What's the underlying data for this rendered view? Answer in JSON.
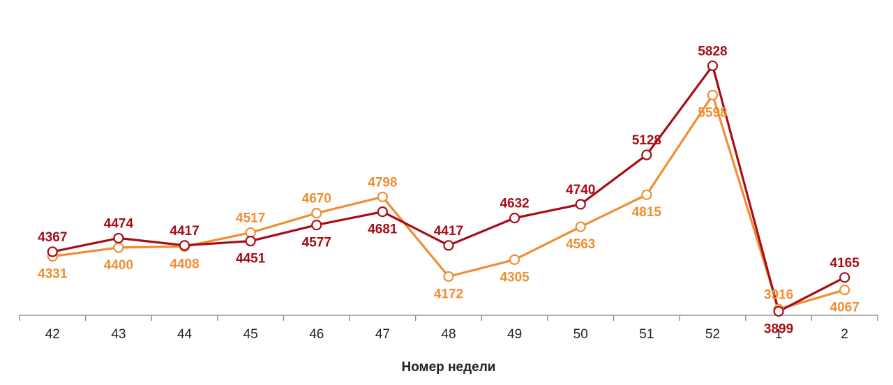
{
  "chart_data": {
    "type": "line",
    "title": "",
    "xlabel": "Номер недели",
    "ylabel": "",
    "categories": [
      "42",
      "43",
      "44",
      "45",
      "46",
      "47",
      "48",
      "49",
      "50",
      "51",
      "52",
      "1",
      "2"
    ],
    "series": [
      {
        "color": "#A80D15",
        "values": [
          4367,
          4474,
          4417,
          4451,
          4577,
          4681,
          4417,
          4632,
          4740,
          5128,
          5828,
          3899,
          4165
        ]
      },
      {
        "color": "#EF8E33",
        "values": [
          4331,
          4400,
          4408,
          4517,
          4670,
          4798,
          4172,
          4305,
          4563,
          4815,
          5598,
          3916,
          4067
        ]
      }
    ],
    "ylim": [
      3890,
      5890
    ],
    "grid": false,
    "legend": "none",
    "markers": "hollow-circle"
  }
}
